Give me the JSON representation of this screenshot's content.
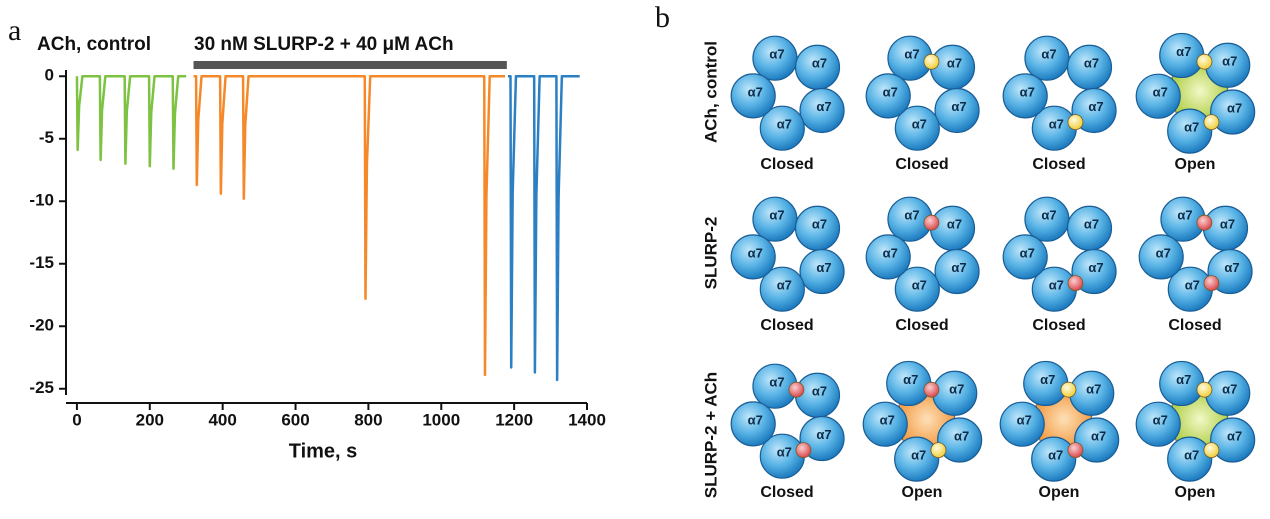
{
  "panel_labels": [
    "a",
    "b"
  ],
  "chart_data": {
    "type": "line",
    "x_label": "Time, s",
    "xlim": [
      -30,
      1400
    ],
    "xticks": [
      0,
      200,
      400,
      600,
      800,
      1000,
      1200,
      1400
    ],
    "ylim": [
      -25.5,
      0.5
    ],
    "yticks": [
      0,
      -5,
      -10,
      -15,
      -20,
      -25
    ],
    "grid": false,
    "annotations": [
      {
        "text": "ACh, control"
      },
      {
        "text": "30 nM SLURP-2 + 40 μM ACh",
        "span": [
          320,
          1180
        ]
      }
    ],
    "series": [
      {
        "color": "#7dc242",
        "x": [
          0,
          2,
          6,
          15,
          63,
          65,
          69,
          78,
          131,
          133,
          137,
          146,
          198,
          200,
          204,
          213,
          263,
          265,
          269,
          278,
          300
        ],
        "values": [
          0,
          -5.9,
          -2.4,
          0,
          0,
          -6.7,
          -2.7,
          0,
          0,
          -7.0,
          -2.8,
          0,
          0,
          -7.2,
          -2.9,
          0,
          0,
          -7.4,
          -3.0,
          0,
          0
        ]
      },
      {
        "color": "#f5892a",
        "x": [
          320,
          327,
          329,
          333,
          342,
          393,
          395,
          399,
          408,
          456,
          458,
          462,
          471,
          790,
          792,
          796,
          805,
          1118,
          1120,
          1124,
          1133,
          1175
        ],
        "values": [
          0,
          0,
          -8.7,
          -3.5,
          0,
          0,
          -9.4,
          -3.8,
          0,
          0,
          -9.8,
          -3.9,
          0,
          0,
          -17.8,
          -7.0,
          0,
          0,
          -23.9,
          -9.5,
          0,
          0
        ]
      },
      {
        "color": "#2b7fc3",
        "x": [
          1183,
          1190,
          1192,
          1196,
          1205,
          1255,
          1257,
          1261,
          1270,
          1316,
          1318,
          1322,
          1331,
          1380
        ],
        "values": [
          0,
          0,
          -23.3,
          -9.3,
          0,
          0,
          -23.7,
          -9.5,
          0,
          0,
          -24.3,
          -9.7,
          0,
          0
        ]
      }
    ]
  },
  "diagram": {
    "rows": [
      {
        "label": "ACh, control",
        "cells": [
          {
            "state": "Closed",
            "subunits": [
              "α7",
              "α7",
              "α7",
              "α7",
              "α7"
            ]
          },
          {
            "state": "Closed",
            "subunits": [
              "α7",
              "α7",
              "α7",
              "α7",
              "α7"
            ]
          },
          {
            "state": "Closed",
            "subunits": [
              "α7",
              "α7",
              "α7",
              "α7",
              "α7"
            ]
          },
          {
            "state": "Open",
            "subunits": [
              "α7",
              "α7",
              "α7",
              "α7",
              "α7"
            ]
          }
        ]
      },
      {
        "label": "SLURP-2",
        "cells": [
          {
            "state": "Closed",
            "subunits": [
              "α7",
              "α7",
              "α7",
              "α7",
              "α7"
            ]
          },
          {
            "state": "Closed",
            "subunits": [
              "α7",
              "α7",
              "α7",
              "α7",
              "α7"
            ]
          },
          {
            "state": "Closed",
            "subunits": [
              "α7",
              "α7",
              "α7",
              "α7",
              "α7"
            ]
          },
          {
            "state": "Closed",
            "subunits": [
              "α7",
              "α7",
              "α7",
              "α7",
              "α7"
            ]
          }
        ]
      },
      {
        "label": "SLURP-2 + ACh",
        "cells": [
          {
            "state": "Closed",
            "subunits": [
              "α7",
              "α7",
              "α7",
              "α7",
              "α7"
            ]
          },
          {
            "state": "Open",
            "subunits": [
              "α7",
              "α7",
              "α7",
              "α7",
              "α7"
            ]
          },
          {
            "state": "Open",
            "subunits": [
              "α7",
              "α7",
              "α7",
              "α7",
              "α7"
            ]
          },
          {
            "state": "Open",
            "subunits": [
              "α7",
              "α7",
              "α7",
              "α7",
              "α7"
            ]
          }
        ]
      }
    ]
  }
}
